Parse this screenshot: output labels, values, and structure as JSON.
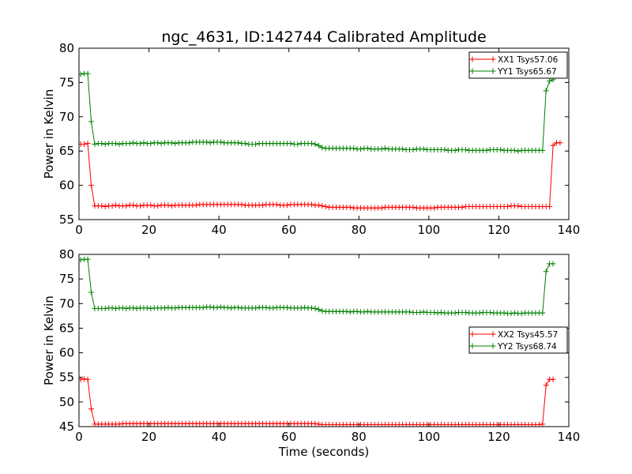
{
  "figure_title": "ngc_4631, ID:142744 Calibrated Amplitude",
  "chart_data": [
    {
      "type": "line",
      "title": "ngc_4631, ID:142744 Calibrated Amplitude",
      "xlabel": "",
      "ylabel": "Power in Kelvin",
      "xlim": [
        0,
        140
      ],
      "ylim": [
        55,
        80
      ],
      "xticks": [
        0,
        20,
        40,
        60,
        80,
        100,
        120,
        140
      ],
      "yticks": [
        55,
        60,
        65,
        70,
        75,
        80
      ],
      "legend_position": "top-right",
      "marker": "+",
      "series": [
        {
          "name": "XX1 Tsys57.06",
          "color": "#ff0000",
          "x_start": 0.5,
          "x_step": 1,
          "values": [
            66.0,
            66.0,
            66.1,
            60.0,
            57.0,
            57.0,
            57.0,
            56.9,
            57.0,
            57.0,
            57.1,
            57.0,
            57.0,
            57.0,
            57.1,
            57.1,
            57.0,
            57.0,
            57.1,
            57.1,
            57.1,
            57.0,
            57.0,
            57.1,
            57.1,
            57.1,
            57.0,
            57.1,
            57.1,
            57.1,
            57.1,
            57.1,
            57.1,
            57.1,
            57.2,
            57.2,
            57.2,
            57.2,
            57.2,
            57.2,
            57.2,
            57.2,
            57.2,
            57.2,
            57.2,
            57.2,
            57.2,
            57.1,
            57.1,
            57.1,
            57.1,
            57.1,
            57.1,
            57.2,
            57.2,
            57.2,
            57.2,
            57.1,
            57.1,
            57.1,
            57.2,
            57.2,
            57.2,
            57.2,
            57.2,
            57.2,
            57.2,
            57.1,
            57.1,
            57.0,
            56.9,
            56.8,
            56.8,
            56.8,
            56.8,
            56.8,
            56.8,
            56.8,
            56.7,
            56.7,
            56.7,
            56.7,
            56.7,
            56.7,
            56.7,
            56.7,
            56.7,
            56.8,
            56.8,
            56.8,
            56.8,
            56.8,
            56.8,
            56.8,
            56.8,
            56.8,
            56.7,
            56.7,
            56.7,
            56.7,
            56.7,
            56.7,
            56.8,
            56.8,
            56.8,
            56.8,
            56.8,
            56.8,
            56.8,
            56.8,
            56.9,
            56.9,
            56.9,
            56.9,
            56.9,
            56.9,
            56.9,
            56.9,
            56.9,
            56.9,
            56.9,
            56.9,
            56.9,
            57.0,
            57.0,
            57.0,
            56.9,
            56.9,
            56.9,
            56.9,
            56.9,
            56.9,
            56.9,
            56.9,
            56.9,
            65.8,
            66.2,
            66.2
          ]
        },
        {
          "name": "YY1 Tsys65.67",
          "color": "#008000",
          "x_start": 0.5,
          "x_step": 1,
          "values": [
            76.2,
            76.3,
            76.3,
            69.3,
            66.0,
            66.1,
            66.1,
            66.0,
            66.1,
            66.1,
            66.1,
            66.0,
            66.1,
            66.1,
            66.1,
            66.2,
            66.1,
            66.1,
            66.2,
            66.1,
            66.1,
            66.2,
            66.2,
            66.1,
            66.2,
            66.2,
            66.2,
            66.1,
            66.2,
            66.2,
            66.2,
            66.2,
            66.3,
            66.3,
            66.3,
            66.3,
            66.3,
            66.2,
            66.3,
            66.3,
            66.3,
            66.2,
            66.2,
            66.2,
            66.2,
            66.2,
            66.1,
            66.1,
            66.0,
            66.0,
            66.0,
            66.1,
            66.1,
            66.1,
            66.1,
            66.1,
            66.1,
            66.1,
            66.1,
            66.1,
            66.1,
            66.0,
            66.0,
            66.1,
            66.1,
            66.1,
            66.1,
            66.0,
            65.8,
            65.5,
            65.4,
            65.4,
            65.4,
            65.4,
            65.4,
            65.4,
            65.4,
            65.4,
            65.4,
            65.3,
            65.3,
            65.4,
            65.4,
            65.3,
            65.3,
            65.3,
            65.3,
            65.4,
            65.3,
            65.3,
            65.3,
            65.3,
            65.3,
            65.2,
            65.2,
            65.2,
            65.3,
            65.3,
            65.3,
            65.2,
            65.2,
            65.2,
            65.2,
            65.2,
            65.2,
            65.1,
            65.1,
            65.1,
            65.2,
            65.2,
            65.2,
            65.1,
            65.1,
            65.1,
            65.1,
            65.1,
            65.1,
            65.2,
            65.2,
            65.2,
            65.2,
            65.1,
            65.1,
            65.1,
            65.1,
            65.0,
            65.1,
            65.1,
            65.1,
            65.1,
            65.1,
            65.1,
            65.1,
            73.8,
            75.2,
            75.4
          ]
        }
      ]
    },
    {
      "type": "line",
      "title": "",
      "xlabel": "Time (seconds)",
      "ylabel": "Power in Kelvin",
      "xlim": [
        0,
        140
      ],
      "ylim": [
        45,
        80
      ],
      "xticks": [
        0,
        20,
        40,
        60,
        80,
        100,
        120,
        140
      ],
      "yticks": [
        45,
        50,
        55,
        60,
        65,
        70,
        75,
        80
      ],
      "legend_position": "center-right",
      "marker": "+",
      "series": [
        {
          "name": "XX2 Tsys45.57",
          "color": "#ff0000",
          "x_start": 0.5,
          "x_step": 1,
          "values": [
            54.6,
            54.7,
            54.6,
            48.6,
            45.5,
            45.5,
            45.5,
            45.5,
            45.5,
            45.5,
            45.5,
            45.5,
            45.6,
            45.6,
            45.6,
            45.6,
            45.6,
            45.6,
            45.6,
            45.6,
            45.6,
            45.6,
            45.6,
            45.6,
            45.6,
            45.6,
            45.6,
            45.6,
            45.6,
            45.6,
            45.6,
            45.6,
            45.6,
            45.6,
            45.6,
            45.6,
            45.6,
            45.6,
            45.6,
            45.6,
            45.6,
            45.6,
            45.6,
            45.6,
            45.6,
            45.6,
            45.6,
            45.6,
            45.6,
            45.6,
            45.6,
            45.6,
            45.6,
            45.6,
            45.6,
            45.6,
            45.6,
            45.6,
            45.6,
            45.6,
            45.6,
            45.6,
            45.6,
            45.6,
            45.6,
            45.6,
            45.6,
            45.6,
            45.5,
            45.4,
            45.4,
            45.4,
            45.4,
            45.4,
            45.4,
            45.4,
            45.4,
            45.4,
            45.4,
            45.4,
            45.4,
            45.4,
            45.4,
            45.4,
            45.4,
            45.4,
            45.4,
            45.4,
            45.4,
            45.4,
            45.4,
            45.4,
            45.4,
            45.4,
            45.4,
            45.4,
            45.4,
            45.4,
            45.4,
            45.4,
            45.4,
            45.4,
            45.4,
            45.4,
            45.4,
            45.4,
            45.4,
            45.4,
            45.4,
            45.4,
            45.4,
            45.4,
            45.4,
            45.4,
            45.4,
            45.4,
            45.4,
            45.4,
            45.4,
            45.4,
            45.4,
            45.4,
            45.4,
            45.4,
            45.4,
            45.4,
            45.4,
            45.4,
            45.4,
            45.4,
            45.4,
            45.4,
            45.5,
            53.4,
            54.6,
            54.6
          ]
        },
        {
          "name": "YY2 Tsys68.74",
          "color": "#008000",
          "x_start": 0.5,
          "x_step": 1,
          "values": [
            78.9,
            79.0,
            79.0,
            72.3,
            69.0,
            69.0,
            69.0,
            69.0,
            69.1,
            69.1,
            69.0,
            69.1,
            69.1,
            69.0,
            69.1,
            69.1,
            69.0,
            69.1,
            69.1,
            69.1,
            69.0,
            69.1,
            69.1,
            69.1,
            69.1,
            69.2,
            69.1,
            69.1,
            69.2,
            69.2,
            69.2,
            69.2,
            69.2,
            69.2,
            69.2,
            69.2,
            69.3,
            69.3,
            69.2,
            69.2,
            69.3,
            69.2,
            69.2,
            69.1,
            69.2,
            69.2,
            69.1,
            69.1,
            69.1,
            69.1,
            69.1,
            69.2,
            69.2,
            69.2,
            69.1,
            69.1,
            69.2,
            69.2,
            69.2,
            69.2,
            69.1,
            69.1,
            69.1,
            69.1,
            69.2,
            69.1,
            69.1,
            69.0,
            68.8,
            68.5,
            68.4,
            68.4,
            68.4,
            68.4,
            68.4,
            68.4,
            68.4,
            68.3,
            68.4,
            68.4,
            68.3,
            68.3,
            68.4,
            68.3,
            68.3,
            68.3,
            68.3,
            68.3,
            68.3,
            68.3,
            68.3,
            68.3,
            68.3,
            68.3,
            68.3,
            68.2,
            68.2,
            68.2,
            68.3,
            68.2,
            68.2,
            68.2,
            68.1,
            68.2,
            68.1,
            68.1,
            68.1,
            68.1,
            68.2,
            68.2,
            68.2,
            68.1,
            68.1,
            68.1,
            68.1,
            68.2,
            68.2,
            68.2,
            68.1,
            68.1,
            68.1,
            68.1,
            68.0,
            68.0,
            68.1,
            68.0,
            68.0,
            68.1,
            68.1,
            68.1,
            68.1,
            68.1,
            68.1,
            76.5,
            78.1,
            78.1
          ]
        }
      ]
    }
  ]
}
